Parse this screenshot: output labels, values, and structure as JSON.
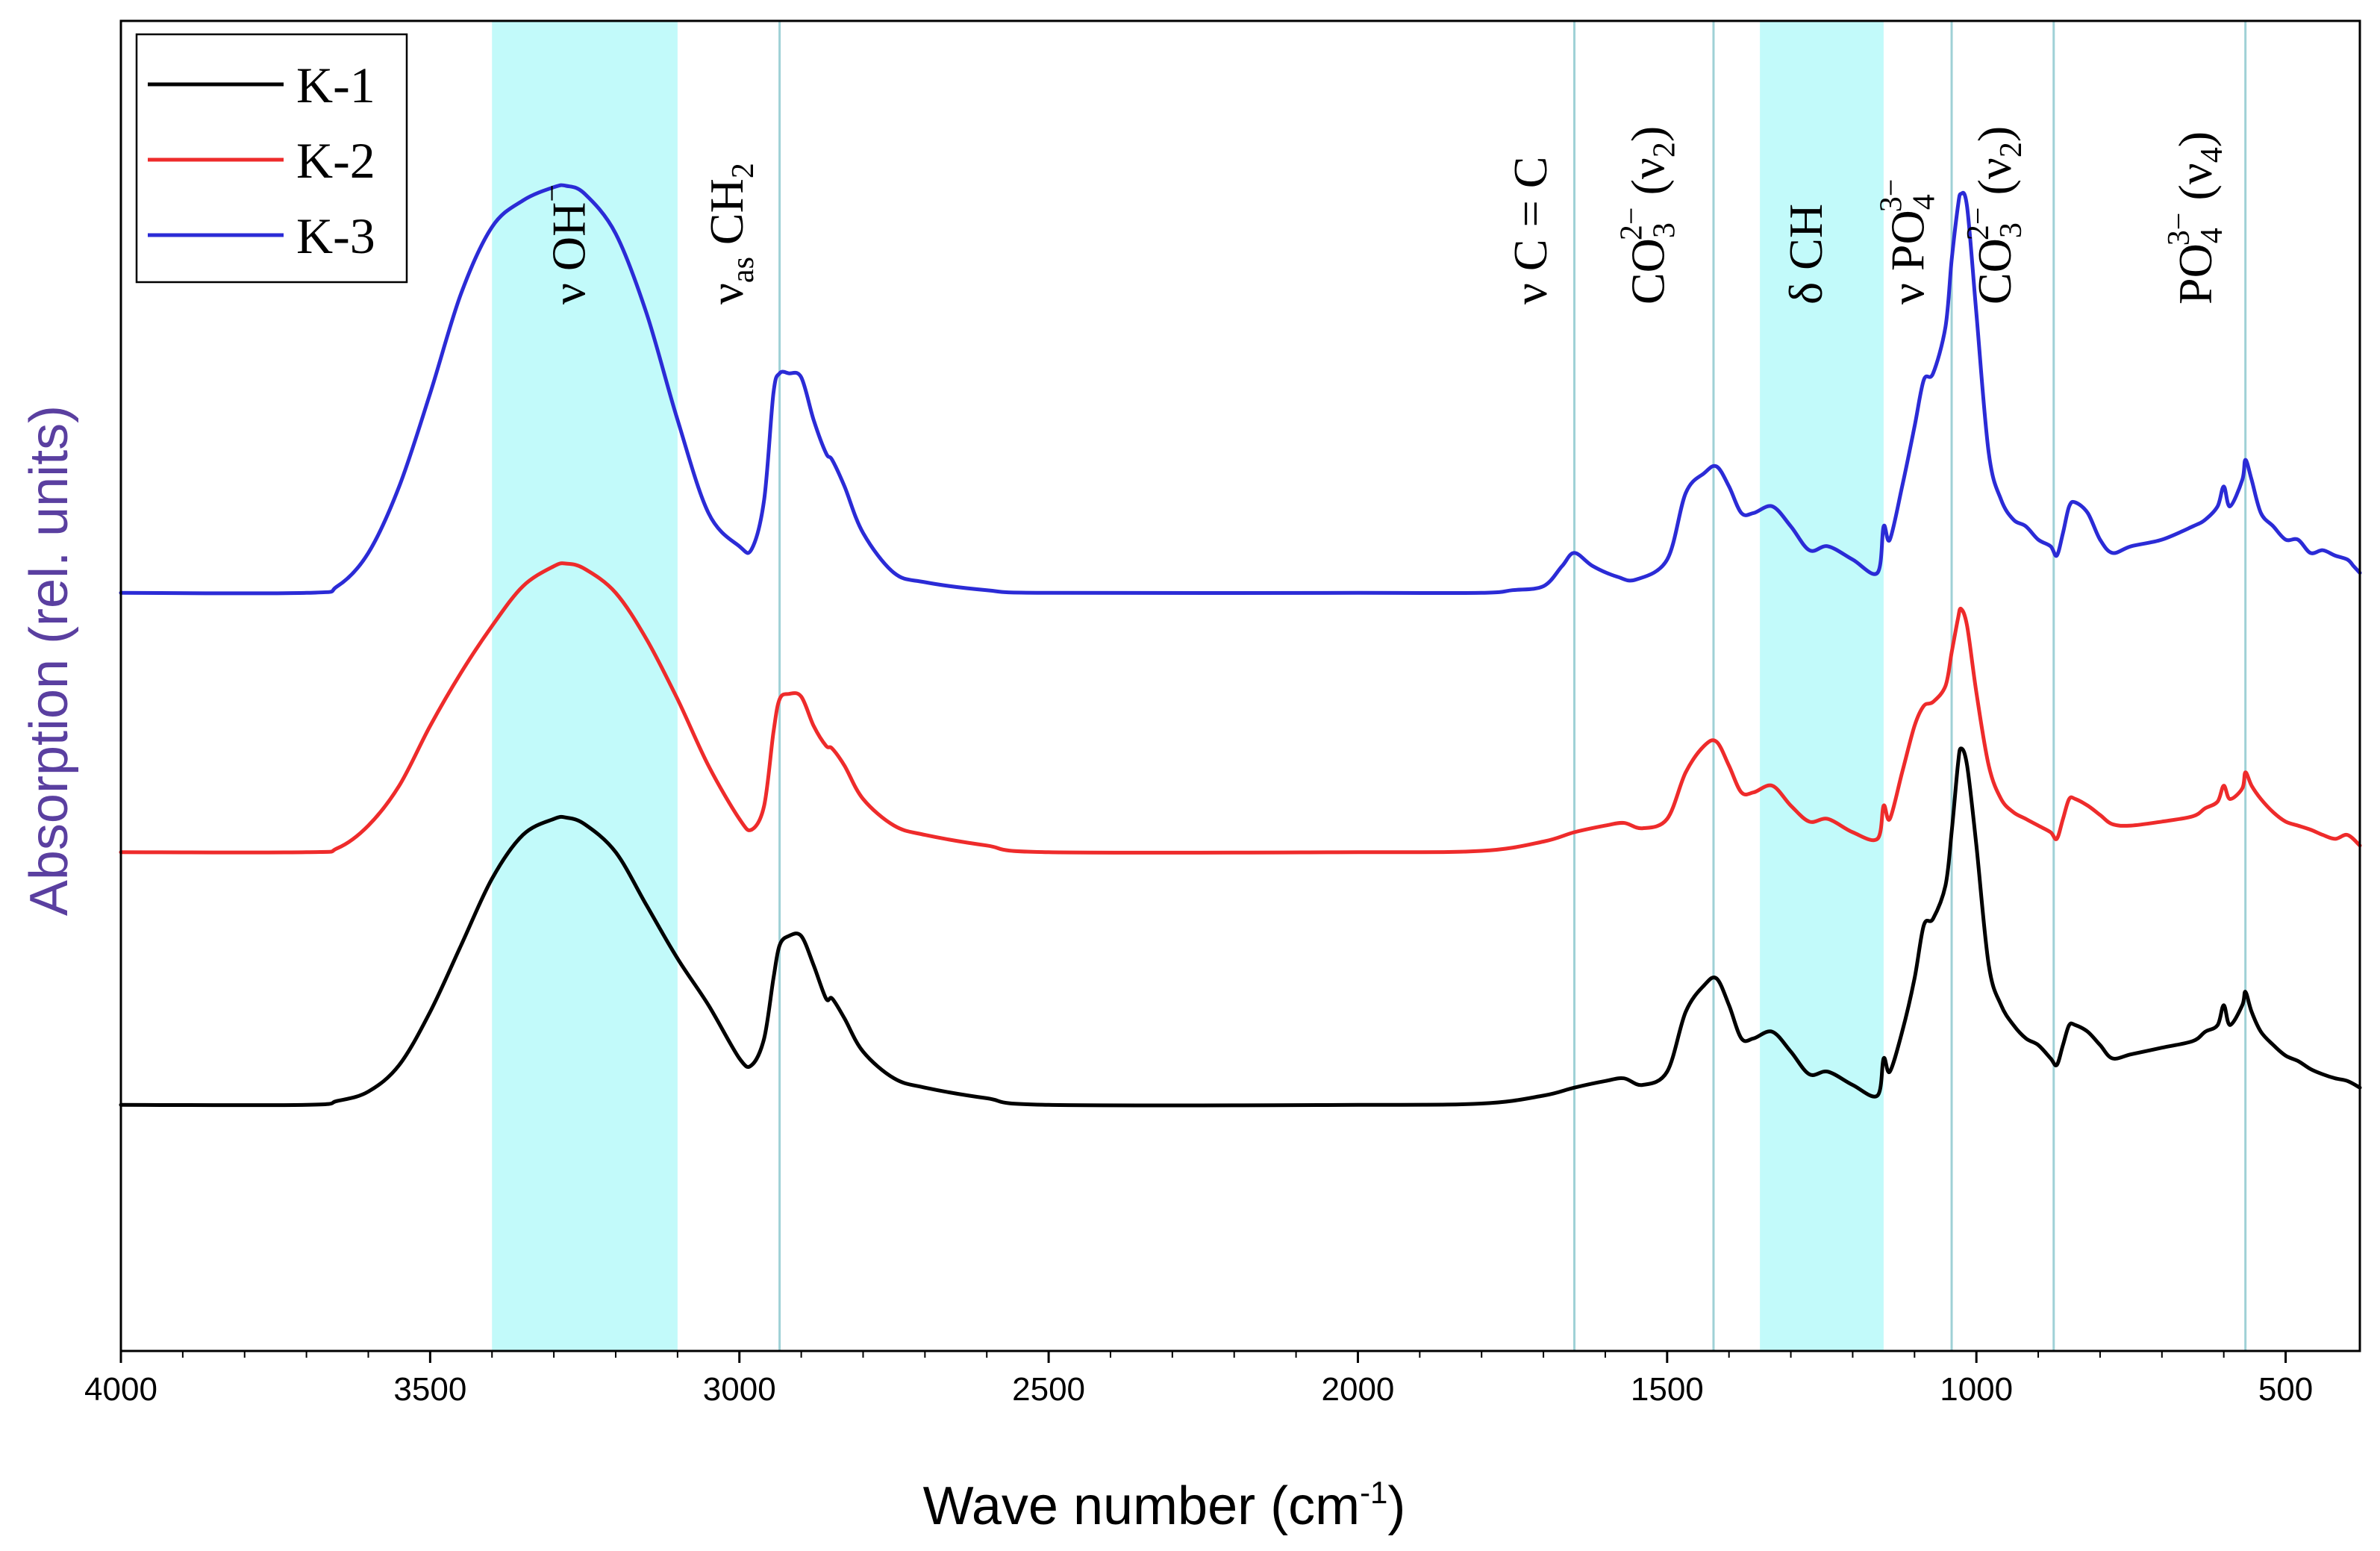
{
  "chart_data": {
    "type": "line",
    "title": "",
    "xlabel": "Wave number (cm",
    "xlabel_sup": "-1",
    "xlabel_end": ")",
    "ylabel": "Absorption (rel. units)",
    "xlim": [
      4000,
      380
    ],
    "ylim": [
      0,
      100
    ],
    "x_reversed": true,
    "grid": false,
    "legend_position": "top-left",
    "xticks": [
      4000,
      3500,
      3000,
      2500,
      2000,
      1500,
      1000,
      500
    ],
    "xtick_labels": [
      "4000",
      "3500",
      "3000",
      "2500",
      "2000",
      "1500",
      "1000",
      "500"
    ],
    "colors": {
      "K-1": "#000000",
      "K-2": "#ee2b2b",
      "K-3": "#2b2bd6",
      "highlight": "#c2fafa",
      "marker_line": "#9fd1d6",
      "ylabel_color": "#5a3fa0"
    },
    "highlight_regions": [
      {
        "from": 3400,
        "to": 3100,
        "label_id": "nu_oh"
      },
      {
        "from": 1350,
        "to": 1150,
        "label_id": "delta_ch"
      }
    ],
    "vertical_lines": [
      2935,
      1650,
      1425,
      1040,
      875,
      565
    ],
    "band_labels": {
      "nu_oh": {
        "x": 3250,
        "parts": [
          "ν OH",
          "−"
        ]
      },
      "nu_as_ch2": {
        "x": 2995,
        "parts": [
          "ν",
          "as",
          " CH",
          "2"
        ]
      },
      "nu_cc": {
        "x": 1695,
        "text": "ν C = C"
      },
      "co3_v2_a": {
        "x": 1505,
        "parts": [
          "CO",
          "3",
          "2−",
          " (ν",
          "2",
          ")"
        ]
      },
      "delta_ch": {
        "x": 1250,
        "text": "δ CH"
      },
      "nu_po4": {
        "x": 1085,
        "parts": [
          "ν PO",
          "4",
          "3−"
        ]
      },
      "co3_v2_b": {
        "x": 945,
        "parts": [
          "CO",
          "3",
          "2−",
          " (ν",
          "2",
          ")"
        ]
      },
      "po4_v4": {
        "x": 620,
        "parts": [
          "PO",
          "4",
          "3−",
          " (ν",
          "4",
          ")"
        ]
      }
    },
    "series": [
      {
        "name": "K-1",
        "x": [
          4000,
          3700,
          3650,
          3600,
          3550,
          3500,
          3450,
          3400,
          3350,
          3300,
          3280,
          3250,
          3200,
          3150,
          3100,
          3050,
          3000,
          2980,
          2960,
          2945,
          2935,
          2920,
          2900,
          2880,
          2860,
          2850,
          2830,
          2800,
          2750,
          2700,
          2600,
          2500,
          2000,
          1800,
          1700,
          1650,
          1600,
          1570,
          1540,
          1500,
          1470,
          1440,
          1420,
          1400,
          1380,
          1360,
          1330,
          1300,
          1270,
          1240,
          1200,
          1160,
          1150,
          1140,
          1120,
          1100,
          1085,
          1070,
          1050,
          1040,
          1030,
          1025,
          1015,
          1000,
          980,
          960,
          940,
          920,
          900,
          880,
          870,
          860,
          850,
          840,
          820,
          800,
          780,
          750,
          700,
          650,
          630,
          610,
          600,
          590,
          570,
          565,
          555,
          540,
          520,
          500,
          480,
          460,
          440,
          420,
          400,
          380
        ],
        "y": [
          18.5,
          18.5,
          18.8,
          19.5,
          21.5,
          25.5,
          30.5,
          35.5,
          38.8,
          40.0,
          40.1,
          39.6,
          37.5,
          33.5,
          29.5,
          26.0,
          22.0,
          21.5,
          23.5,
          28.0,
          30.5,
          31.2,
          31.2,
          29.0,
          26.5,
          26.5,
          25.0,
          22.5,
          20.5,
          19.8,
          19.0,
          18.5,
          18.5,
          18.6,
          19.2,
          19.8,
          20.3,
          20.5,
          20.0,
          21.0,
          25.5,
          27.5,
          28.0,
          26.0,
          23.5,
          23.5,
          24.0,
          22.5,
          20.8,
          21.0,
          20.0,
          19.2,
          22.0,
          21.0,
          24.0,
          28.0,
          32.0,
          32.5,
          35.0,
          39.0,
          44.0,
          45.3,
          44.0,
          38.0,
          29.0,
          26.0,
          24.5,
          23.5,
          23.0,
          22.0,
          21.5,
          23.0,
          24.5,
          24.5,
          24.0,
          23.0,
          22.0,
          22.3,
          22.8,
          23.3,
          24.0,
          24.5,
          26.0,
          24.5,
          26.0,
          27.0,
          25.5,
          24.0,
          23.0,
          22.2,
          21.8,
          21.2,
          20.8,
          20.5,
          20.3,
          19.8
        ]
      },
      {
        "name": "K-2",
        "x": [
          4000,
          3700,
          3650,
          3600,
          3550,
          3500,
          3450,
          3400,
          3350,
          3300,
          3280,
          3250,
          3200,
          3150,
          3100,
          3050,
          3000,
          2980,
          2960,
          2945,
          2935,
          2920,
          2900,
          2880,
          2860,
          2850,
          2830,
          2800,
          2750,
          2700,
          2600,
          2500,
          2000,
          1800,
          1700,
          1650,
          1600,
          1570,
          1540,
          1500,
          1470,
          1440,
          1420,
          1400,
          1380,
          1360,
          1330,
          1300,
          1270,
          1240,
          1200,
          1160,
          1150,
          1140,
          1120,
          1100,
          1085,
          1070,
          1050,
          1040,
          1030,
          1025,
          1015,
          1000,
          980,
          960,
          940,
          920,
          900,
          880,
          870,
          860,
          850,
          840,
          820,
          800,
          780,
          750,
          700,
          650,
          630,
          610,
          600,
          590,
          570,
          565,
          555,
          540,
          520,
          500,
          480,
          460,
          440,
          420,
          400,
          380
        ],
        "y": [
          37.5,
          37.5,
          37.8,
          39.5,
          42.5,
          47.0,
          51.0,
          54.5,
          57.5,
          59.0,
          59.2,
          58.8,
          57.0,
          53.5,
          49.0,
          44.0,
          40.0,
          39.2,
          41.0,
          46.5,
          49.0,
          49.4,
          49.2,
          47.0,
          45.5,
          45.3,
          44.0,
          41.5,
          39.5,
          38.8,
          38.0,
          37.5,
          37.5,
          37.6,
          38.3,
          39.0,
          39.5,
          39.7,
          39.3,
          40.0,
          43.5,
          45.5,
          45.8,
          44.0,
          42.0,
          42.0,
          42.5,
          41.0,
          39.8,
          40.0,
          39.0,
          38.5,
          41.0,
          40.0,
          43.5,
          47.0,
          48.5,
          48.8,
          50.0,
          52.5,
          55.0,
          55.8,
          54.5,
          49.5,
          44.0,
          41.5,
          40.5,
          40.0,
          39.5,
          39.0,
          38.5,
          40.0,
          41.5,
          41.5,
          41.0,
          40.3,
          39.6,
          39.5,
          39.8,
          40.2,
          40.8,
          41.3,
          42.5,
          41.5,
          42.3,
          43.5,
          42.5,
          41.5,
          40.5,
          39.8,
          39.5,
          39.2,
          38.8,
          38.5,
          38.8,
          38.0
        ]
      },
      {
        "name": "K-3",
        "x": [
          4000,
          3700,
          3650,
          3600,
          3550,
          3500,
          3450,
          3400,
          3350,
          3300,
          3280,
          3250,
          3200,
          3150,
          3100,
          3050,
          3000,
          2980,
          2960,
          2945,
          2935,
          2920,
          2900,
          2880,
          2860,
          2850,
          2830,
          2800,
          2750,
          2700,
          2600,
          2500,
          2000,
          1800,
          1750,
          1700,
          1670,
          1650,
          1620,
          1580,
          1550,
          1500,
          1470,
          1440,
          1420,
          1400,
          1380,
          1360,
          1330,
          1300,
          1270,
          1240,
          1200,
          1160,
          1150,
          1140,
          1120,
          1100,
          1085,
          1070,
          1050,
          1040,
          1030,
          1025,
          1015,
          1000,
          980,
          960,
          940,
          920,
          900,
          880,
          870,
          860,
          850,
          840,
          820,
          800,
          780,
          750,
          700,
          650,
          630,
          610,
          600,
          590,
          570,
          565,
          555,
          540,
          520,
          500,
          480,
          460,
          440,
          420,
          400,
          390,
          380
        ],
        "y": [
          57.0,
          57.0,
          57.5,
          60.0,
          65.0,
          72.0,
          79.5,
          84.5,
          86.5,
          87.5,
          87.6,
          87.0,
          84.0,
          78.0,
          70.0,
          63.0,
          60.5,
          60.3,
          64.0,
          72.0,
          73.5,
          73.5,
          73.2,
          70.0,
          67.5,
          67.0,
          65.0,
          61.5,
          58.5,
          57.8,
          57.2,
          57.0,
          57.0,
          57.0,
          57.2,
          57.5,
          59.0,
          60.0,
          59.0,
          58.2,
          58.0,
          59.5,
          64.5,
          66.0,
          66.5,
          65.0,
          63.0,
          63.0,
          63.5,
          62.0,
          60.2,
          60.5,
          59.5,
          58.5,
          62.0,
          61.0,
          65.0,
          69.5,
          73.0,
          73.5,
          77.0,
          82.0,
          86.0,
          87.0,
          86.0,
          78.0,
          67.5,
          64.0,
          62.5,
          62.0,
          61.0,
          60.5,
          59.8,
          61.5,
          63.5,
          63.8,
          63.0,
          61.0,
          60.0,
          60.5,
          61.0,
          62.0,
          62.5,
          63.5,
          65.0,
          63.5,
          65.5,
          67.0,
          65.5,
          63.0,
          62.0,
          61.0,
          61.0,
          60.0,
          60.2,
          59.8,
          59.5,
          59.0,
          58.5
        ]
      }
    ]
  }
}
